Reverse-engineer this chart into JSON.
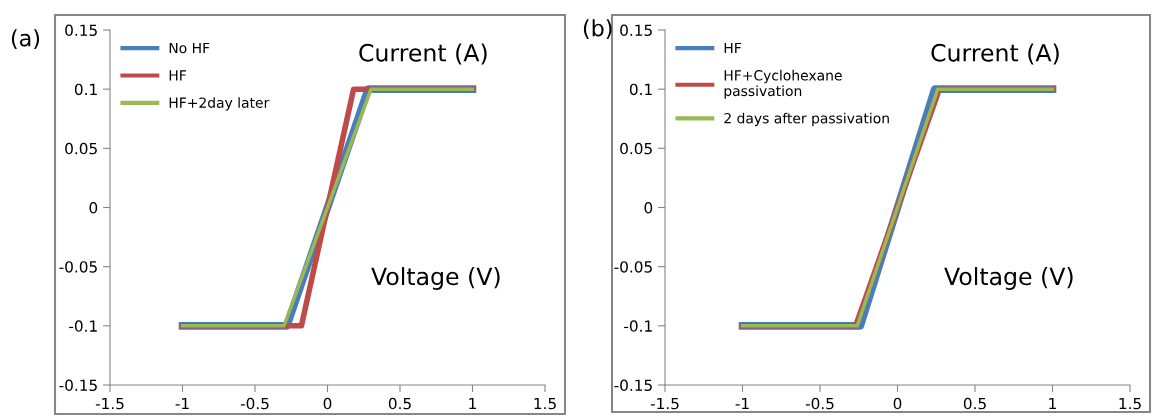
{
  "chart_data": [
    {
      "type": "line",
      "title": "(a)",
      "xlabel": "Voltage (V)",
      "ylabel": "Current (A)",
      "xlim": [
        -1.5,
        1.5
      ],
      "xticks": [
        -1.5,
        -1,
        -0.5,
        0,
        0.5,
        1,
        1.5
      ],
      "ylim": [
        -0.15,
        0.15
      ],
      "yticks": [
        -0.15,
        -0.1,
        -0.05,
        0,
        0.05,
        0.1,
        0.15
      ],
      "grid": false,
      "legend": "top left",
      "marker": "none",
      "line_style": "solid",
      "series": [
        {
          "name": "No HF",
          "color": "#4a7ebb",
          "x": [
            -1,
            -0.28,
            0.28,
            1
          ],
          "values": [
            -0.1,
            -0.1,
            0.1,
            0.1
          ]
        },
        {
          "name": "HF",
          "color": "#be4b48",
          "x": [
            -1,
            -0.18,
            0.18,
            1
          ],
          "values": [
            -0.1,
            -0.1,
            0.1,
            0.1
          ]
        },
        {
          "name": "HF+2day later",
          "color": "#98b954",
          "x": [
            -1,
            -0.3,
            0.3,
            1
          ],
          "values": [
            -0.1,
            -0.1,
            0.1,
            0.1
          ]
        }
      ]
    },
    {
      "type": "line",
      "title": "(b)",
      "xlabel": "Voltage (V)",
      "ylabel": "Current (A)",
      "xlim": [
        -1.5,
        1.5
      ],
      "xticks": [
        -1.5,
        -1,
        -0.5,
        0,
        0.5,
        1,
        1.5
      ],
      "ylim": [
        -0.15,
        0.15
      ],
      "yticks": [
        -0.15,
        -0.1,
        -0.05,
        0,
        0.05,
        0.1,
        0.15
      ],
      "grid": false,
      "legend": "top left",
      "marker": "none",
      "line_style": "solid",
      "series": [
        {
          "name": "HF",
          "color": "#4a7ebb",
          "x": [
            -1,
            -0.24,
            0.24,
            1
          ],
          "values": [
            -0.1,
            -0.1,
            0.1,
            0.1
          ]
        },
        {
          "name": "HF+Cyclohexane\npassivation",
          "color": "#be4b48",
          "x": [
            -1,
            -0.27,
            0.27,
            1
          ],
          "values": [
            -0.1,
            -0.1,
            0.1,
            0.1
          ]
        },
        {
          "name": "2 days after passivation",
          "color": "#98b954",
          "x": [
            -1,
            -0.26,
            0.26,
            1
          ],
          "values": [
            -0.1,
            -0.1,
            0.1,
            0.1
          ]
        }
      ]
    }
  ]
}
